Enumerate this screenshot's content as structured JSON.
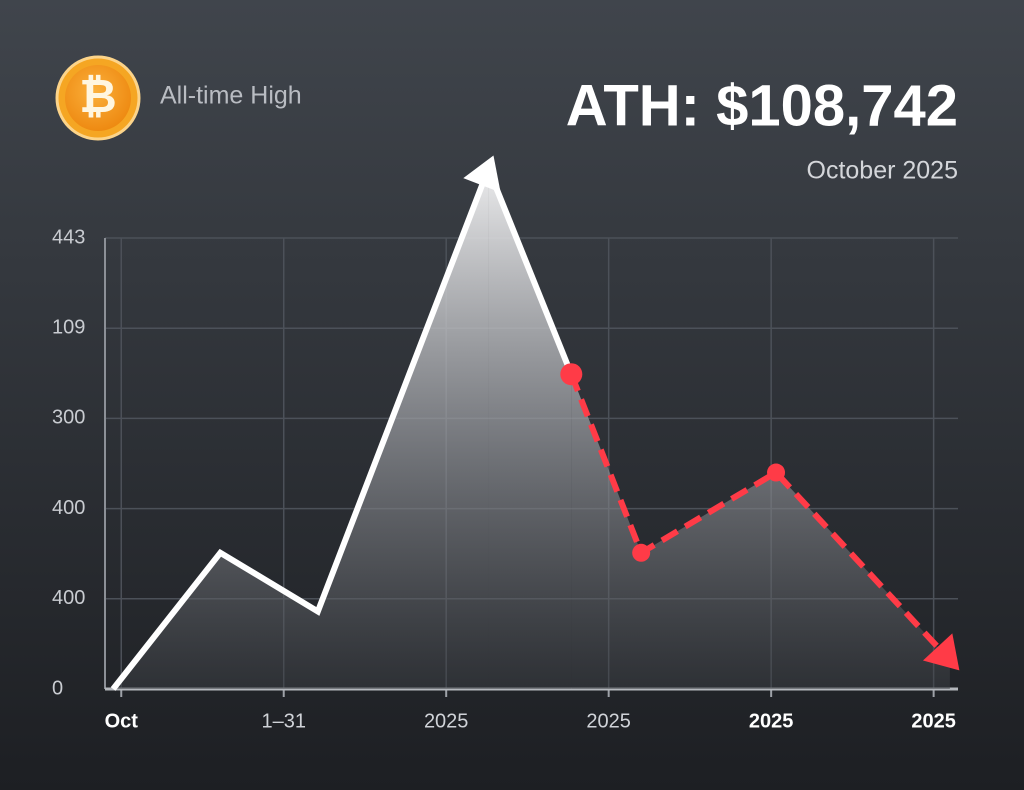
{
  "header": {
    "icon": "₿",
    "label": "All-time High",
    "title": "ATH: $108,742",
    "subtitle": "October 2025"
  },
  "chart_data": {
    "type": "line",
    "x": [
      -0.05,
      0.61,
      1.21,
      2.26,
      2.77,
      3.2,
      4.03,
      5.1
    ],
    "series": [
      {
        "color": "#ffffff",
        "dashed": false,
        "markers": false,
        "arrow": true,
        "values": [
          0,
          1.51,
          0.86,
          5.77,
          null,
          null,
          null,
          null
        ]
      },
      {
        "color": "#ffffff",
        "dashed": false,
        "markers": false,
        "arrow": false,
        "values": [
          null,
          null,
          null,
          5.77,
          3.49,
          null,
          null,
          null
        ]
      },
      {
        "color": "#ff3b47",
        "dashed": true,
        "markers": true,
        "arrow": true,
        "values": [
          null,
          null,
          null,
          null,
          3.49,
          1.51,
          2.4,
          0.32
        ]
      }
    ],
    "xlim": [
      -0.1,
      5.15
    ],
    "xticks": [
      {
        "value": 0,
        "label": "Oct"
      },
      {
        "value": 1,
        "label": "1–31"
      },
      {
        "value": 2,
        "label": "2025"
      },
      {
        "value": 3,
        "label": "2025"
      },
      {
        "value": 4,
        "label": "2025"
      },
      {
        "value": 5,
        "label": "2025"
      }
    ],
    "ylim": [
      0,
      5
    ],
    "yticks": [
      {
        "value": 0,
        "label": "0"
      },
      {
        "value": 1,
        "label": "400"
      },
      {
        "value": 2,
        "label": "400"
      },
      {
        "value": 3,
        "label": "300"
      },
      {
        "value": 4,
        "label": "109"
      },
      {
        "value": 5,
        "label": "443"
      }
    ],
    "grid": true
  }
}
